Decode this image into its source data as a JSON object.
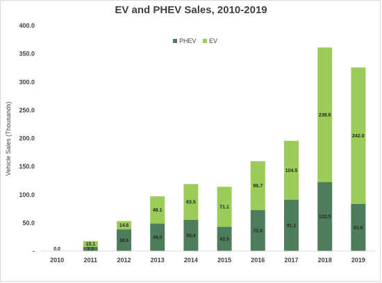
{
  "chart_data": {
    "type": "bar",
    "stacked": true,
    "title": "EV and PHEV Sales, 2010-2019",
    "xlabel": "",
    "ylabel": "Vehicle Sales (Thousands)",
    "categories": [
      "2010",
      "2011",
      "2012",
      "2013",
      "2014",
      "2015",
      "2016",
      "2017",
      "2018",
      "2019"
    ],
    "series": [
      {
        "name": "PHEV",
        "color": "#4e7d5b",
        "values": [
          0.0,
          7.7,
          38.6,
          49.0,
          55.4,
          43.0,
          72.9,
          91.1,
          122.5,
          83.8
        ],
        "labels": [
          "",
          "7.7",
          "38.6",
          "49.0",
          "55.4",
          "43.0",
          "72.9",
          "91.1",
          "122.5",
          "83.8"
        ]
      },
      {
        "name": "EV",
        "color": "#9bcc5a",
        "values": [
          0.0,
          10.1,
          14.6,
          48.1,
          63.5,
          71.1,
          86.7,
          104.5,
          238.8,
          242.0
        ],
        "labels": [
          "0.0",
          "10.1",
          "14.6",
          "48.1",
          "63.5",
          "71.1",
          "86.7",
          "104.5",
          "238.8",
          "242.0"
        ]
      }
    ],
    "ylim": [
      0,
      400
    ],
    "yticks": [
      0,
      50,
      100,
      150,
      200,
      250,
      300,
      350,
      400
    ],
    "ytick_labels": [
      "-",
      "50.0",
      "100.0",
      "150.0",
      "200.0",
      "250.0",
      "300.0",
      "350.0",
      "400.0"
    ],
    "grid": false,
    "legend": "top-center"
  }
}
